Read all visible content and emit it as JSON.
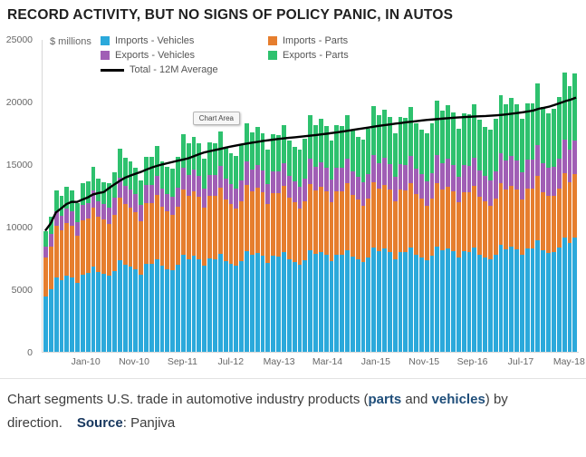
{
  "title": "RECORD ACTIVITY, BUT NO SIGNS OF POLICY PANIC, IN AUTOS",
  "chart": {
    "y_unit_label": "$ millions",
    "chart_area_tooltip": "Chart Area"
  },
  "caption": {
    "part1": "Chart segments U.S. trade in automotive industry products (",
    "bold1": "parts",
    "part2": " and ",
    "bold2": "vehicles",
    "part3": ") by direction.",
    "source_label": "Source",
    "source_value": ": Panjiva"
  },
  "chart_data": {
    "type": "bar",
    "stacked": true,
    "title": "RECORD ACTIVITY, BUT NO SIGNS OF POLICY PANIC, IN AUTOS",
    "ylabel": "$ millions",
    "ylim": [
      0,
      25000
    ],
    "yticks": [
      0,
      5000,
      10000,
      15000,
      20000,
      25000
    ],
    "x_start": "Jan-10",
    "x_end": "May-18",
    "frequency": "monthly",
    "grid": false,
    "legend_position": "top",
    "xticks": [
      {
        "i": 0,
        "label": "Jan-10"
      },
      {
        "i": 10,
        "label": "Nov-10"
      },
      {
        "i": 20,
        "label": "Sep-11"
      },
      {
        "i": 30,
        "label": "Jul-12"
      },
      {
        "i": 40,
        "label": "May-13"
      },
      {
        "i": 50,
        "label": "Mar-14"
      },
      {
        "i": 60,
        "label": "Jan-15"
      },
      {
        "i": 70,
        "label": "Nov-15"
      },
      {
        "i": 80,
        "label": "Sep-16"
      },
      {
        "i": 90,
        "label": "Jul-17"
      },
      {
        "i": 100,
        "label": "May-18"
      }
    ],
    "series": [
      {
        "name": "Imports - Vehicles",
        "color": "#2BA9DB",
        "values": [
          4450,
          5000,
          5950,
          5750,
          6075,
          5950,
          5500,
          6200,
          6300,
          6825,
          6375,
          6250,
          6075,
          6475,
          7325,
          7000,
          6850,
          6650,
          6200,
          7050,
          7050,
          7425,
          6875,
          6650,
          6550,
          6950,
          7775,
          7450,
          7675,
          7425,
          6900,
          7475,
          7450,
          7850,
          7300,
          7075,
          6900,
          7275,
          8075,
          7750,
          7950,
          7700,
          7125,
          7675,
          7650,
          8000,
          7450,
          7225,
          6975,
          7325,
          8150,
          7825,
          8025,
          7775,
          7275,
          7800,
          7775,
          8175,
          7625,
          7400,
          7225,
          7575,
          8375,
          8050,
          8250,
          8000,
          7450,
          8000,
          7975,
          8325,
          7800,
          7575,
          7350,
          7675,
          8450,
          8125,
          8300,
          8050,
          7525,
          8050,
          8000,
          8325,
          7800,
          7550,
          7400,
          7750,
          8550,
          8225,
          8450,
          8225,
          7750,
          8275,
          8275,
          8925,
          8125,
          7925,
          8000,
          8350,
          9175,
          8725,
          9150
        ]
      },
      {
        "name": "Imports - Parts",
        "color": "#E67E2E",
        "values": [
          3100,
          3450,
          4150,
          4000,
          4225,
          4150,
          3825,
          4325,
          4375,
          4750,
          4425,
          4350,
          4175,
          4475,
          5050,
          4825,
          4725,
          4575,
          4250,
          4850,
          4850,
          5125,
          4750,
          4600,
          4400,
          4675,
          5225,
          5025,
          5175,
          5000,
          4650,
          5050,
          5025,
          5300,
          4925,
          4775,
          4550,
          4800,
          5325,
          5100,
          5225,
          5075,
          4700,
          5050,
          5050,
          5275,
          4925,
          4750,
          4525,
          4775,
          5300,
          5100,
          5225,
          5075,
          4725,
          5075,
          5075,
          5325,
          4975,
          4825,
          4500,
          4725,
          5225,
          5025,
          5150,
          4975,
          4650,
          4975,
          4975,
          5200,
          4850,
          4725,
          4375,
          4575,
          5050,
          4850,
          4925,
          4800,
          4475,
          4775,
          4775,
          4975,
          4650,
          4500,
          4275,
          4500,
          4950,
          4775,
          4875,
          4775,
          4475,
          4800,
          4800,
          5150,
          4700,
          4575,
          4475,
          4700,
          5150,
          4900,
          5125
        ]
      },
      {
        "name": "Exports - Vehicles",
        "color": "#A05EB5",
        "values": [
          875,
          975,
          1175,
          1125,
          1200,
          1175,
          1075,
          1225,
          1225,
          1350,
          1250,
          1225,
          1275,
          1375,
          1550,
          1475,
          1450,
          1400,
          1300,
          1475,
          1475,
          1575,
          1450,
          1400,
          1475,
          1550,
          1750,
          1675,
          1725,
          1675,
          1550,
          1675,
          1675,
          1775,
          1650,
          1600,
          1600,
          1675,
          1850,
          1775,
          1825,
          1775,
          1650,
          1775,
          1750,
          1850,
          1700,
          1675,
          1700,
          1800,
          2000,
          1900,
          1950,
          1900,
          1775,
          1900,
          1900,
          2000,
          1875,
          1800,
          1875,
          1975,
          2175,
          2075,
          2125,
          2075,
          1925,
          2075,
          2050,
          2150,
          2025,
          1950,
          1975,
          2050,
          2275,
          2175,
          2225,
          2150,
          2000,
          2150,
          2150,
          2225,
          2100,
          2025,
          2075,
          2200,
          2425,
          2325,
          2400,
          2325,
          2200,
          2350,
          2350,
          2525,
          2300,
          2250,
          2350,
          2450,
          2700,
          2550,
          2675
        ]
      },
      {
        "name": "Exports - Parts",
        "color": "#2EC16E",
        "values": [
          1275,
          1425,
          1675,
          1625,
          1700,
          1675,
          1550,
          1750,
          1800,
          1925,
          1800,
          1775,
          1975,
          2075,
          2375,
          2250,
          2225,
          2125,
          2000,
          2275,
          2275,
          2375,
          2225,
          2150,
          2275,
          2425,
          2700,
          2600,
          2675,
          2600,
          2400,
          2600,
          2600,
          2725,
          2525,
          2450,
          2650,
          2800,
          3100,
          2975,
          3050,
          2950,
          2725,
          2950,
          2950,
          3075,
          2875,
          2750,
          3000,
          3150,
          3500,
          3375,
          3450,
          3350,
          3125,
          3375,
          3350,
          3500,
          3275,
          3175,
          3400,
          3575,
          3925,
          3800,
          3875,
          3750,
          3525,
          3750,
          3750,
          3925,
          3675,
          3550,
          3800,
          4000,
          4375,
          4200,
          4300,
          4200,
          3900,
          4175,
          4125,
          4325,
          4050,
          3925,
          4050,
          4250,
          4675,
          4525,
          4625,
          4525,
          4225,
          4525,
          4525,
          4900,
          4475,
          4350,
          4675,
          4900,
          5375,
          5125,
          5350
        ]
      }
    ],
    "line_series": {
      "name": "Total - 12M Average",
      "color": "#000000",
      "derivation": "trailing 12-month average of the stacked monthly total (expanding average for first 11 months)"
    }
  }
}
